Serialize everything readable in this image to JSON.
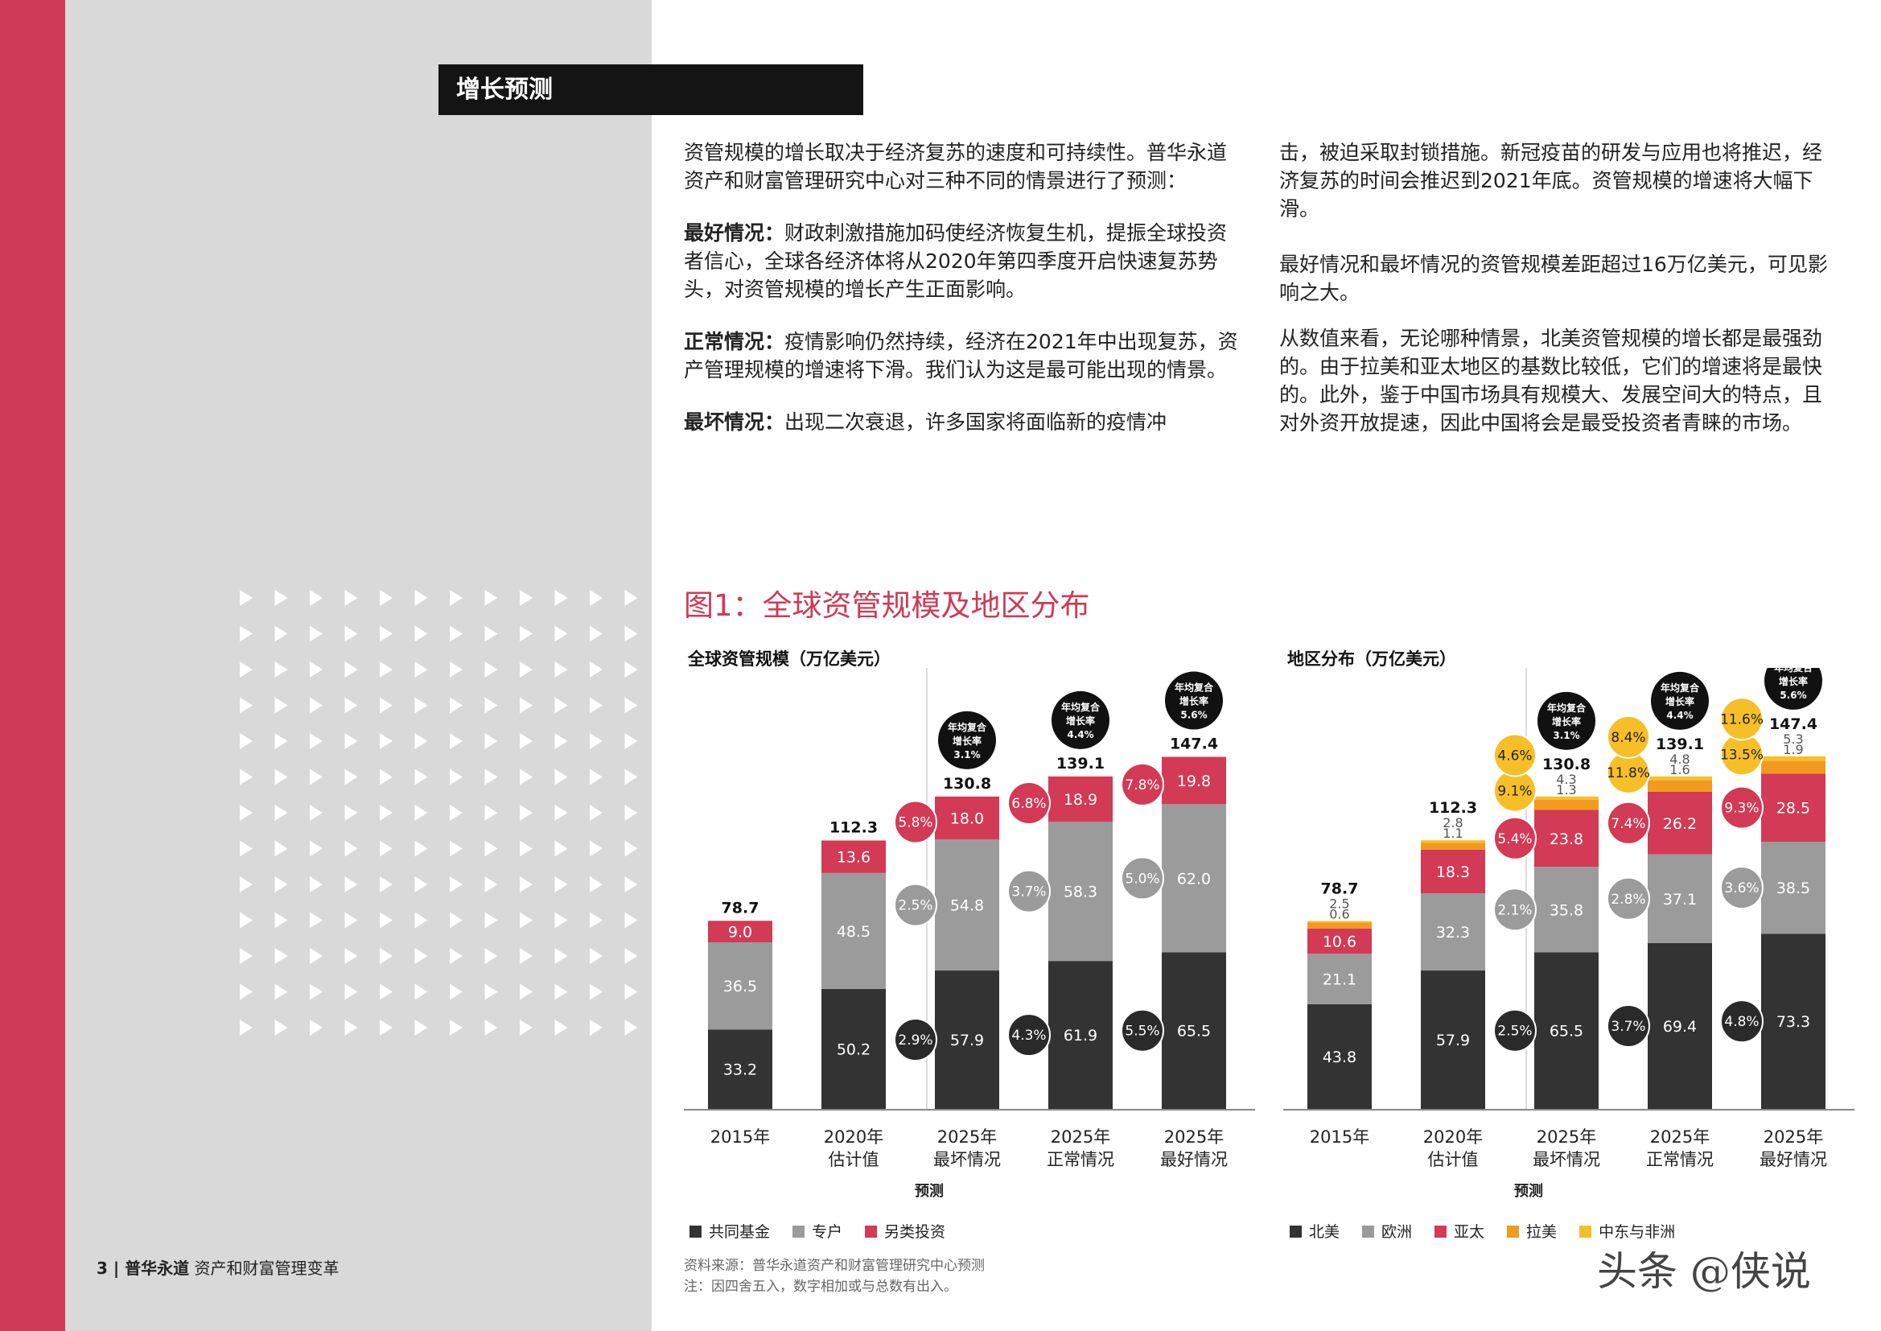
{
  "colors": {
    "accent": "#cf3a56",
    "dark": "#333333",
    "gray": "#9b9b9b",
    "red": "#d33a55",
    "orange": "#f29a1f",
    "yellow": "#f7bf27"
  },
  "section_title": "增长预测",
  "left_column": {
    "intro": "资管规模的增长取决于经济复苏的速度和可持续性。普华永道资产和财富管理研究中心对三种不同的情景进行了预测：",
    "best_label": "最好情况：",
    "best_text": "财政刺激措施加码使经济恢复生机，提振全球投资者信心，全球各经济体将从2020年第四季度开启快速复苏势头，对资管规模的增长产生正面影响。",
    "normal_label": "正常情况：",
    "normal_text": "疫情影响仍然持续，经济在2021年中出现复苏，资产管理规模的增速将下滑。我们认为这是最可能出现的情景。",
    "worst_label": "最坏情况：",
    "worst_text": "出现二次衰退，许多国家将面临新的疫情冲"
  },
  "right_column": {
    "p1": "击，被迫采取封锁措施。新冠疫苗的研发与应用也将推迟，经济复苏的时间会推迟到2021年底。资管规模的增速将大幅下滑。",
    "p2": "最好情况和最坏情况的资管规模差距超过16万亿美元，可见影响之大。",
    "p3": "从数值来看，无论哪种情景，北美资管规模的增长都是最强劲的。由于拉美和亚太地区的基数比较低，它们的增速将是最快的。此外，鉴于中国市场具有规模大、发展空间大的特点，且对外资开放提速，因此中国将会是最受投资者青睐的市场。"
  },
  "figure_title": "图1：全球资管规模及地区分布",
  "forecast_label": "预测",
  "cagr_label_line1": "年均复合",
  "cagr_label_line2": "增长率",
  "footer_page": "3 | 普华永道",
  "footer_title": "资产和财富管理变革",
  "source_line1": "资料来源：普华永道资产和财富管理研究中心预测",
  "source_line2": "注：因四舍五入，数字相加或与总数有出入。",
  "watermark": "头条 @侠说",
  "chart_data": [
    {
      "type": "bar",
      "stacked": true,
      "title": "全球资管规模（万亿美元）",
      "categories": [
        "2015年",
        "2020年\n估计值",
        "2025年\n最坏情况",
        "2025年\n正常情况",
        "2025年\n最好情况"
      ],
      "series": [
        {
          "name": "共同基金",
          "color": "#333333",
          "values": [
            33.2,
            50.2,
            57.9,
            61.9,
            65.5
          ],
          "cagr": [
            null,
            null,
            "2.9%",
            "4.3%",
            "5.5%"
          ]
        },
        {
          "name": "专户",
          "color": "#9b9b9b",
          "values": [
            36.5,
            48.5,
            54.8,
            58.3,
            62.0
          ],
          "cagr": [
            null,
            null,
            "2.5%",
            "3.7%",
            "5.0%"
          ]
        },
        {
          "name": "另类投资",
          "color": "#d33a55",
          "values": [
            9.0,
            13.6,
            18.0,
            18.9,
            19.8
          ],
          "cagr": [
            null,
            null,
            "5.8%",
            "6.8%",
            "7.8%"
          ]
        }
      ],
      "totals": [
        78.7,
        112.3,
        130.8,
        139.1,
        147.4
      ],
      "total_cagr": [
        null,
        null,
        "3.1%",
        "4.4%",
        "5.6%"
      ]
    },
    {
      "type": "bar",
      "stacked": true,
      "title": "地区分布（万亿美元）",
      "categories": [
        "2015年",
        "2020年\n估计值",
        "2025年\n最坏情况",
        "2025年\n正常情况",
        "2025年\n最好情况"
      ],
      "series": [
        {
          "name": "北美",
          "color": "#333333",
          "values": [
            43.8,
            57.9,
            65.5,
            69.4,
            73.3
          ],
          "cagr": [
            null,
            null,
            "2.5%",
            "3.7%",
            "4.8%"
          ]
        },
        {
          "name": "欧洲",
          "color": "#9b9b9b",
          "values": [
            21.1,
            32.3,
            35.8,
            37.1,
            38.5
          ],
          "cagr": [
            null,
            null,
            "2.1%",
            "2.8%",
            "3.6%"
          ]
        },
        {
          "name": "亚太",
          "color": "#d33a55",
          "values": [
            10.6,
            18.3,
            23.8,
            26.2,
            28.5
          ],
          "cagr": [
            null,
            null,
            "5.4%",
            "7.4%",
            "9.3%"
          ]
        },
        {
          "name": "拉美",
          "color": "#f29a1f",
          "values": [
            2.5,
            2.8,
            4.3,
            4.8,
            5.3
          ],
          "cagr": [
            null,
            null,
            "9.1%",
            "11.8%",
            "13.5%"
          ]
        },
        {
          "name": "中东与非洲",
          "color": "#f7bf27",
          "values": [
            0.6,
            1.1,
            1.3,
            1.6,
            1.9
          ],
          "cagr": [
            null,
            null,
            "4.6%",
            "8.4%",
            "11.6%"
          ]
        }
      ],
      "totals": [
        78.7,
        112.3,
        130.8,
        139.1,
        147.4
      ],
      "total_cagr": [
        null,
        null,
        "3.1%",
        "4.4%",
        "5.6%"
      ]
    }
  ]
}
